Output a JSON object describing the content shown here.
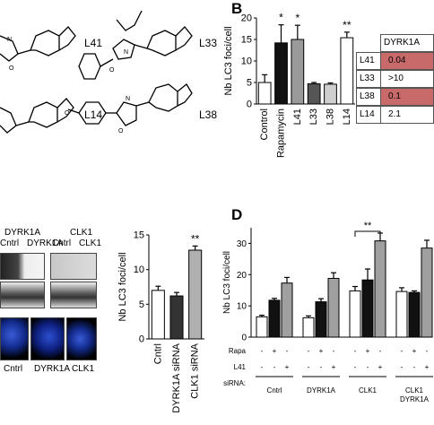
{
  "panelA": {
    "compounds": [
      "L41",
      "L33",
      "L14",
      "L38"
    ]
  },
  "panelB": {
    "letter": "B",
    "chart_data": {
      "type": "bar",
      "categories": [
        "Control",
        "Rapamycin",
        "L41",
        "L33",
        "L38",
        "L14"
      ],
      "values": [
        5,
        14.2,
        15,
        4.7,
        4.6,
        15.4
      ],
      "errors": [
        1.8,
        4.2,
        3.3,
        0.3,
        0.3,
        1.3
      ],
      "significance": [
        "",
        "*",
        "*",
        "",
        "",
        "**"
      ],
      "bar_colors": [
        "#ffffff",
        "#111111",
        "#9a9a9a",
        "#555555",
        "#cfcfcf",
        "#ffffff"
      ],
      "ylabel": "Nb LC3 foci/cell",
      "ylim": [
        0,
        20
      ],
      "yticks": [
        0,
        5,
        10,
        15,
        20
      ]
    },
    "table": {
      "header": "DYRK1A",
      "rows": [
        {
          "name": "L41",
          "value": "0.04",
          "highlight": "#c96a6a"
        },
        {
          "name": "L33",
          "value": ">10",
          "highlight": ""
        },
        {
          "name": "L38",
          "value": "0.1",
          "highlight": "#c96a6a"
        },
        {
          "name": "L14",
          "value": "2.1",
          "highlight": ""
        }
      ]
    }
  },
  "panelC": {
    "blot_header_left": "DYRK1A",
    "blot_header_right": "CLK1",
    "lane_labels_left": [
      "Cntrl",
      "DYRK1A"
    ],
    "lane_labels_right": [
      "Cntrl",
      "CLK1"
    ],
    "micro_labels": [
      "Cntrl",
      "DYRK1A",
      "CLK1"
    ],
    "chart_data": {
      "type": "bar",
      "categories": [
        "Cntrl",
        "DYRK1A siRNA",
        "CLK1 siRNA"
      ],
      "values": [
        7,
        6.2,
        12.8
      ],
      "errors": [
        0.6,
        0.5,
        0.6
      ],
      "significance": [
        "",
        "",
        "**"
      ],
      "bar_colors": [
        "#ffffff",
        "#333333",
        "#b0b0b0"
      ],
      "ylabel": "Nb LC3 foci/cell",
      "ylim": [
        0,
        15
      ],
      "yticks": [
        0,
        5,
        10,
        15
      ]
    }
  },
  "panelD": {
    "letter": "D",
    "chart_data": {
      "type": "bar",
      "groups": [
        "Cntrl",
        "DYRK1A",
        "CLK1",
        "CLK1 DYRK1A"
      ],
      "row_labels": [
        "Rapa",
        "L41",
        "siRNA:"
      ],
      "rapa_signs": [
        "-",
        "+",
        "-"
      ],
      "l41_signs": [
        "-",
        "-",
        "+"
      ],
      "values": [
        6.5,
        11.8,
        17.3,
        6.2,
        11.3,
        18.8,
        14.8,
        18.3,
        30.8,
        14.6,
        14.3,
        28.5
      ],
      "errors": [
        0.5,
        0.6,
        1.8,
        0.6,
        1.0,
        1.8,
        1.4,
        3.5,
        2.5,
        1.2,
        0.5,
        2.5
      ],
      "bar_colors": [
        "#ffffff",
        "#111111",
        "#a0a0a0"
      ],
      "significance_label": "**",
      "ylabel": "Nb LC3 foci/cell",
      "ylim": [
        0,
        35
      ],
      "yticks": [
        0,
        10,
        20,
        30
      ]
    }
  }
}
